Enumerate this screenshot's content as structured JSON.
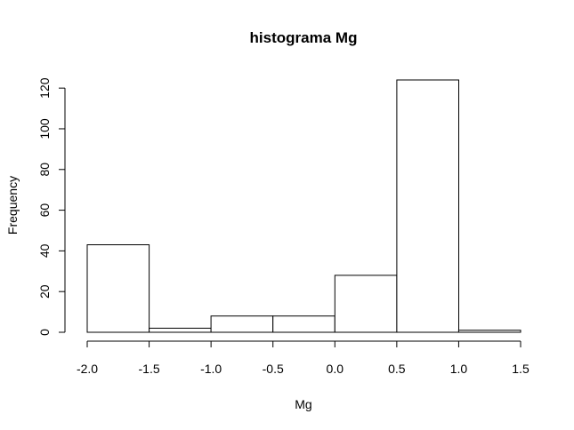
{
  "chart_data": {
    "type": "bar",
    "title": "histograma Mg",
    "xlabel": "Mg",
    "ylabel": "Frequency",
    "bins": [
      {
        "x0": -2.0,
        "x1": -1.5,
        "count": 43
      },
      {
        "x0": -1.5,
        "x1": -1.0,
        "count": 2
      },
      {
        "x0": -1.0,
        "x1": -0.5,
        "count": 8
      },
      {
        "x0": -0.5,
        "x1": 0.0,
        "count": 8
      },
      {
        "x0": 0.0,
        "x1": 0.5,
        "count": 28
      },
      {
        "x0": 0.5,
        "x1": 1.0,
        "count": 124
      },
      {
        "x0": 1.0,
        "x1": 1.5,
        "count": 1
      }
    ],
    "xlim": [
      -2.0,
      1.5
    ],
    "ylim": [
      0,
      124
    ],
    "xticks": [
      "-2.0",
      "-1.5",
      "-1.0",
      "-0.5",
      "0.0",
      "0.5",
      "1.0",
      "1.5"
    ],
    "yticks": [
      "0",
      "20",
      "40",
      "60",
      "80",
      "100",
      "120"
    ],
    "grid": false
  }
}
